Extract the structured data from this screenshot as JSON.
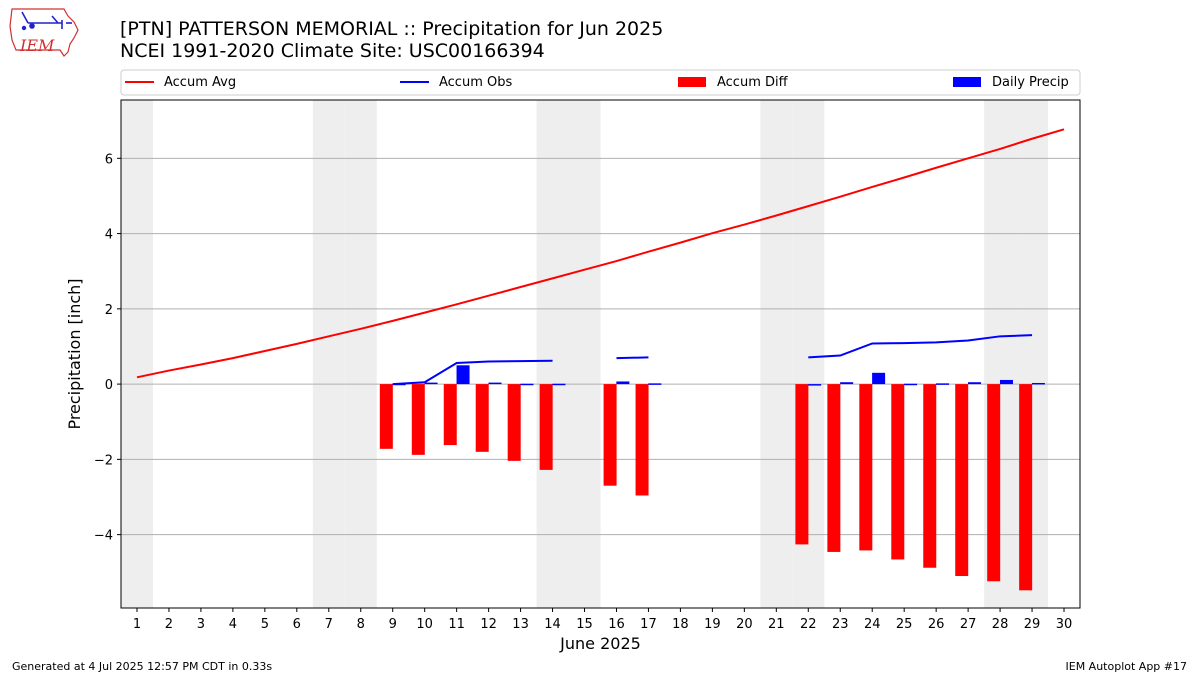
{
  "header": {
    "title": "[PTN] PATTERSON MEMORIAL :: Precipitation for Jun 2025",
    "subtitle": "NCEI 1991-2020 Climate Site: USC00166394"
  },
  "logo": {
    "text": "IEM",
    "icon": "iowa-state-outline-logo"
  },
  "footer": {
    "left": "Generated at 4 Jul 2025 12:57 PM CDT in 0.33s",
    "right": "IEM Autoplot App #17"
  },
  "colors": {
    "avg": "#ff0000",
    "obs": "#0000ff",
    "diff": "#ff0000",
    "daily": "#0000ff",
    "weekend": "#eeeeee",
    "grid": "#b0b0b0"
  },
  "chart_data": {
    "type": "bar",
    "xlabel": "June 2025",
    "ylabel": "Precipitation [inch]",
    "xlim": [
      0.5,
      30.5
    ],
    "ylim": [
      -5.95,
      7.55
    ],
    "yticks": [
      -4,
      -2,
      0,
      2,
      4,
      6
    ],
    "xticks": [
      1,
      2,
      3,
      4,
      5,
      6,
      7,
      8,
      9,
      10,
      11,
      12,
      13,
      14,
      15,
      16,
      17,
      18,
      19,
      20,
      21,
      22,
      23,
      24,
      25,
      26,
      27,
      28,
      29,
      30
    ],
    "weekend_days": [
      1,
      7,
      8,
      14,
      15,
      21,
      22,
      28,
      29
    ],
    "grid": true,
    "legend": {
      "placement": "top",
      "items": [
        "Accum Avg",
        "Accum Obs",
        "Accum Diff",
        "Daily Precip"
      ]
    },
    "series": [
      {
        "name": "Accum Avg",
        "type": "line",
        "x": [
          1,
          2,
          3,
          4,
          5,
          6,
          7,
          8,
          9,
          10,
          11,
          12,
          13,
          14,
          15,
          16,
          17,
          18,
          19,
          20,
          21,
          22,
          23,
          24,
          25,
          26,
          27,
          28,
          29,
          30
        ],
        "values": [
          0.18,
          0.36,
          0.52,
          0.69,
          0.88,
          1.07,
          1.27,
          1.47,
          1.68,
          1.9,
          2.12,
          2.35,
          2.58,
          2.81,
          3.04,
          3.27,
          3.52,
          3.76,
          4.01,
          4.24,
          4.48,
          4.73,
          4.98,
          5.24,
          5.49,
          5.75,
          6.0,
          6.25,
          6.52,
          6.77
        ]
      },
      {
        "name": "Accum Obs",
        "type": "line",
        "x": [
          1,
          2,
          3,
          4,
          5,
          6,
          7,
          8,
          9,
          10,
          11,
          12,
          13,
          14,
          15,
          16,
          17,
          18,
          19,
          20,
          21,
          22,
          23,
          24,
          25,
          26,
          27,
          28,
          29,
          30
        ],
        "values": [
          null,
          null,
          null,
          null,
          null,
          null,
          null,
          null,
          0.0,
          0.05,
          0.56,
          0.6,
          0.61,
          0.62,
          null,
          0.69,
          0.71,
          null,
          null,
          null,
          null,
          0.71,
          0.76,
          1.08,
          1.09,
          1.11,
          1.16,
          1.27,
          1.3,
          null
        ]
      },
      {
        "name": "Accum Diff",
        "type": "bar",
        "x": [
          9,
          10,
          11,
          12,
          13,
          14,
          16,
          17,
          22,
          23,
          24,
          25,
          26,
          27,
          28,
          29
        ],
        "values": [
          -1.72,
          -1.88,
          -1.62,
          -1.8,
          -2.04,
          -2.28,
          -2.7,
          -2.96,
          -4.26,
          -4.46,
          -4.42,
          -4.66,
          -4.88,
          -5.1,
          -5.24,
          -5.48
        ]
      },
      {
        "name": "Daily Precip",
        "type": "bar",
        "x": [
          9,
          10,
          11,
          12,
          13,
          14,
          16,
          17,
          22,
          23,
          24,
          25,
          26,
          27,
          28,
          29
        ],
        "values": [
          0.01,
          0.04,
          0.5,
          0.04,
          0.01,
          0.01,
          0.07,
          0.02,
          0.0,
          0.05,
          0.3,
          0.01,
          0.02,
          0.05,
          0.11,
          0.03
        ]
      }
    ]
  }
}
